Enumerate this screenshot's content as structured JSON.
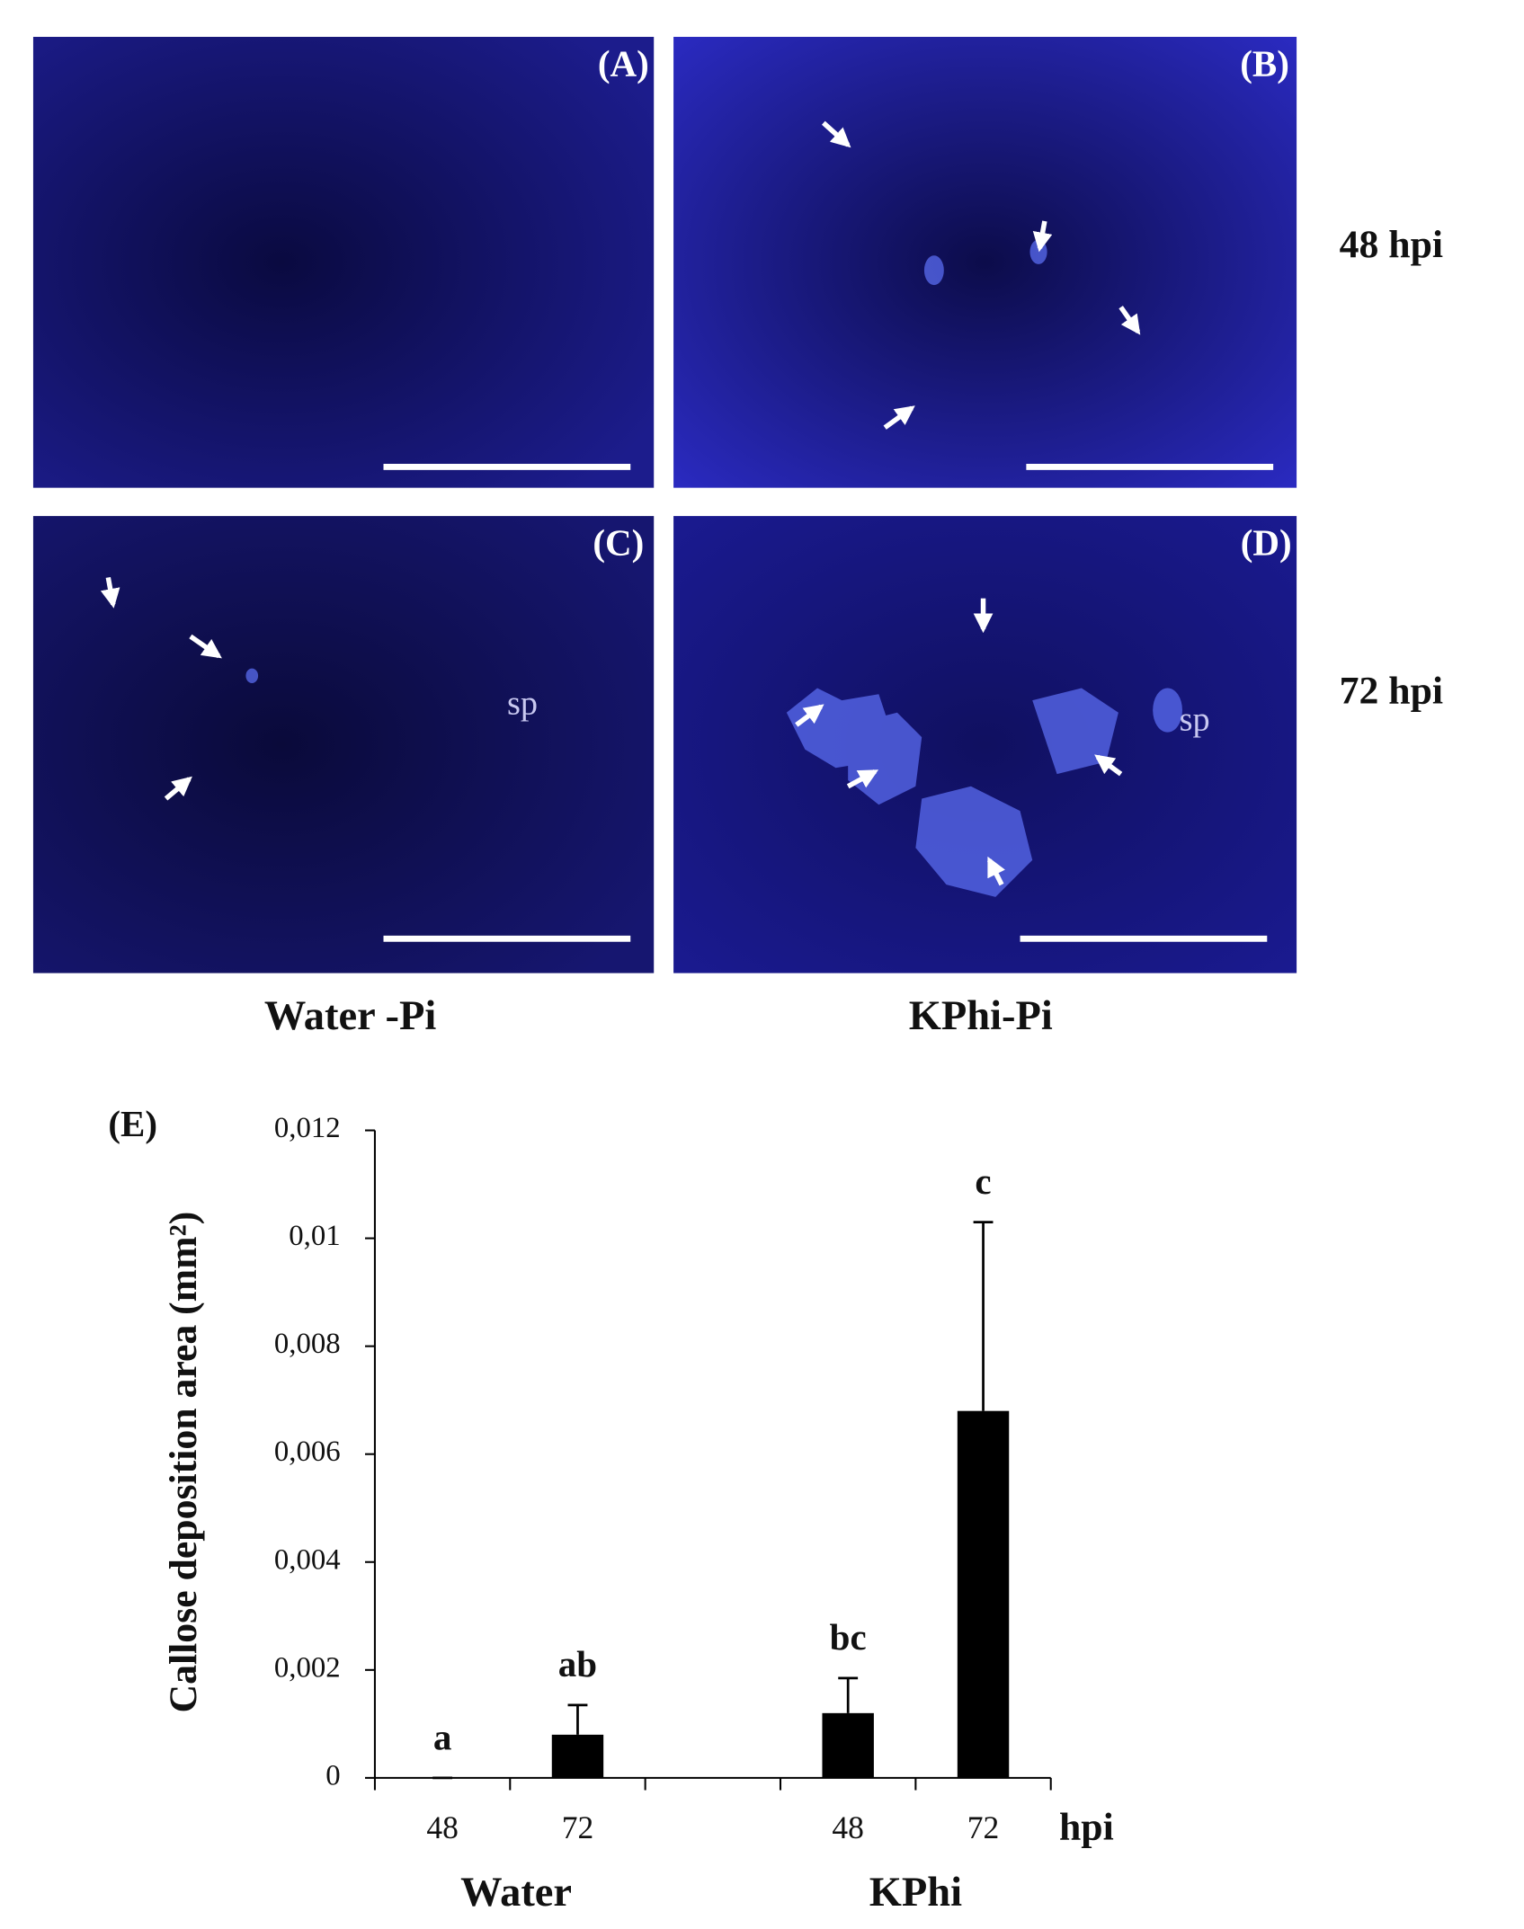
{
  "panels": [
    {
      "label": "(A)"
    },
    {
      "label": "(B)"
    },
    {
      "label": "(C)",
      "annotation": "sp"
    },
    {
      "label": "(D)",
      "annotation": "sp"
    }
  ],
  "row_labels": [
    "48 hpi",
    "72 hpi"
  ],
  "column_labels": [
    "Water -Pi",
    "KPhi-Pi"
  ],
  "chart_data": {
    "type": "bar",
    "panel_label": "(E)",
    "y_label": "Callose deposition area (mm²)",
    "x_unit": "hpi",
    "groups": [
      "Water",
      "KPhi"
    ],
    "categories": [
      "48",
      "72",
      null,
      "48",
      "72"
    ],
    "values": [
      0,
      0.0008,
      null,
      0.0012,
      0.0068
    ],
    "errors": [
      0,
      0.00055,
      null,
      0.00065,
      0.0035
    ],
    "annotations": [
      "a",
      "ab",
      null,
      "bc",
      "c"
    ],
    "color": "#000000",
    "ylim": [
      0,
      0.012
    ],
    "yticks": [
      0,
      {
        "value": 0.002,
        "label": "0,002"
      },
      {
        "value": 0.004,
        "label": "0,004"
      },
      {
        "value": 0.006,
        "label": "0,006"
      },
      {
        "value": 0.008,
        "label": "0,008"
      },
      {
        "value": 0.01,
        "label": "0,01"
      },
      {
        "value": 0.012,
        "label": "0,012"
      }
    ]
  }
}
